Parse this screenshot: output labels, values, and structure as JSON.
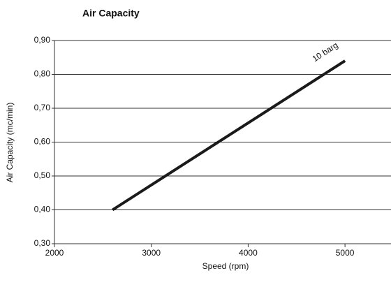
{
  "chart_data": {
    "type": "line",
    "title": "Air Capacity",
    "x_label": "Speed (rpm)",
    "y_label": "Air Capacity (mc/min)",
    "x": [
      2600,
      5000
    ],
    "series": [
      {
        "name": "10 barg",
        "color": "#1a1a1a",
        "values": [
          0.4,
          0.84
        ]
      }
    ],
    "xlim": [
      2000,
      5475
    ],
    "xticks": [
      2000,
      3000,
      4000,
      5000
    ],
    "ylim": [
      0.3,
      0.9
    ],
    "yticks": [
      {
        "value": 0.3,
        "label": "0,30"
      },
      {
        "value": 0.4,
        "label": "0,40"
      },
      {
        "value": 0.5,
        "label": "0,50"
      },
      {
        "value": 0.6,
        "label": "0,60"
      },
      {
        "value": 0.7,
        "label": "0,70"
      },
      {
        "value": 0.8,
        "label": "0,80"
      },
      {
        "value": 0.9,
        "label": "0,90"
      }
    ],
    "grid": true
  }
}
